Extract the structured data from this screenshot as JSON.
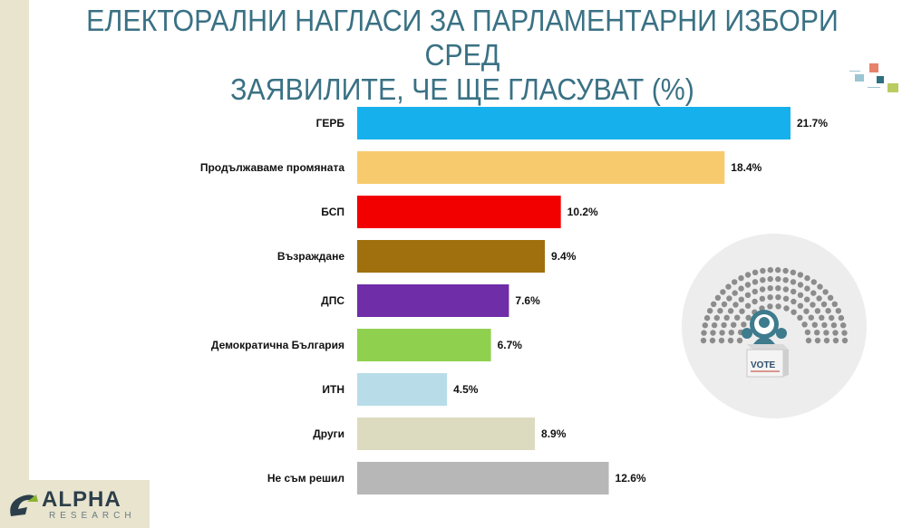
{
  "title_line1": "ЕЛЕКТОРАЛНИ НАГЛАСИ ЗА ПАРЛАМЕНТАРНИ ИЗБОРИ СРЕД",
  "title_line2": "ЗАЯВИЛИТЕ, ЧЕ ЩЕ ГЛАСУВАТ (%)",
  "logo": {
    "name": "ALPHA",
    "sub": "RESEARCH"
  },
  "illustration": {
    "ballot_text": "VOTE"
  },
  "colors": {
    "title": "#3a7184",
    "left_stripe": "#e8e4cd"
  },
  "chart_data": {
    "type": "bar",
    "orientation": "horizontal",
    "categories": [
      "ГЕРБ",
      "Продължаваме промяната",
      "БСП",
      "Възраждане",
      "ДПС",
      "Демократична България",
      "ИТН",
      "Други",
      "Не съм решил"
    ],
    "values": [
      21.7,
      18.4,
      10.2,
      9.4,
      7.6,
      6.7,
      4.5,
      8.9,
      12.6
    ],
    "value_labels": [
      "21.7%",
      "18.4%",
      "10.2%",
      "9.4%",
      "7.6%",
      "6.7%",
      "4.5%",
      "8.9%",
      "12.6%"
    ],
    "colors": [
      "#16b1ec",
      "#f7cb6d",
      "#f20000",
      "#a0700e",
      "#6f2da8",
      "#8fd14f",
      "#b8dde9",
      "#dcdbbf",
      "#b7b7b7"
    ],
    "xlim": [
      0,
      21.7
    ],
    "grid": false,
    "legend": "none"
  }
}
